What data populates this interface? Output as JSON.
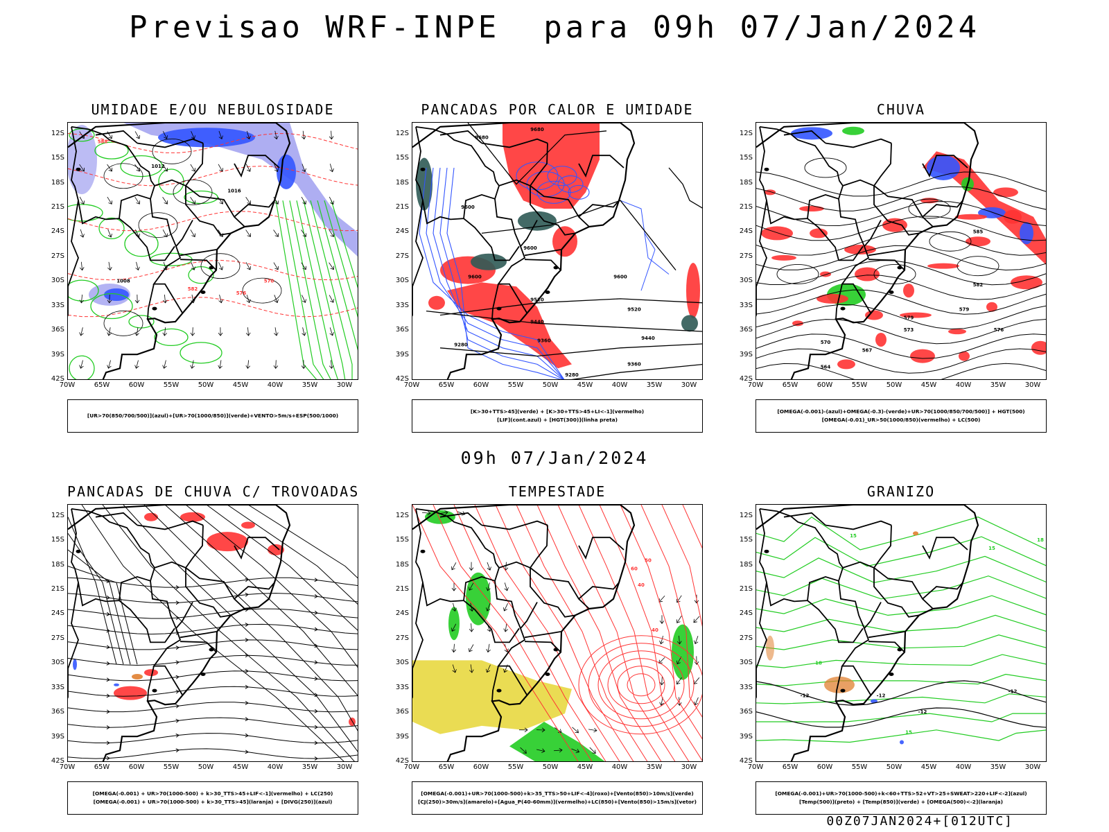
{
  "header": {
    "title": "Previsao WRF-INPE  para 09h 07/Jan/2024",
    "mid_date": "09h 07/Jan/2024",
    "footer": "00Z07JAN2024+[012UTC]"
  },
  "axes": {
    "lat_labels": [
      "12S",
      "15S",
      "18S",
      "21S",
      "24S",
      "27S",
      "30S",
      "33S",
      "36S",
      "39S",
      "42S"
    ],
    "lon_labels": [
      "70W",
      "65W",
      "60W",
      "55W",
      "50W",
      "45W",
      "40W",
      "35W",
      "30W"
    ]
  },
  "colors": {
    "green": "#22cc22",
    "red": "#ff3333",
    "blue": "#3355ff",
    "lightblue": "#a0a0f0",
    "darkgreen": "#2f5a55",
    "yellow": "#e8d840",
    "orange": "#e08030",
    "black": "#000000"
  },
  "panels": [
    {
      "title": "UMIDADE E/OU NEBULOSIDADE",
      "legend": [
        "[UR>70(850/700/500)](azul)+[UR>70(1000/850)](verde)+VENTO>5m/s+ESP(500/1000)"
      ],
      "contour_labels": [
        "1012",
        "1016",
        "1008",
        "576",
        "582",
        "588",
        "570"
      ]
    },
    {
      "title": "PANCADAS POR CALOR E UMIDADE",
      "legend": [
        "[K>30+TTS>45](verde)  +  [K>30+TTS>45+LI<-1](vermelho)",
        "[LIF](cont.azul)  +  [HGT(300)](linha preta)"
      ],
      "contour_labels": [
        "9680",
        "9600",
        "9520",
        "9440",
        "9360",
        "9280"
      ]
    },
    {
      "title": "CHUVA",
      "legend": [
        "[OMEGA(-0.001)-(azul)+OMEGA(-0.3)-(verde)+UR>70(1000/850/700/500)]  +  HGT(500)",
        "[OMEGA(-0.01)_UR>50(1000/850)(vermelho)  +  LC(500)"
      ],
      "contour_labels": [
        "585",
        "582",
        "579",
        "576",
        "573",
        "570",
        "567",
        "564"
      ]
    },
    {
      "title": "PANCADAS DE CHUVA C/ TROVOADAS",
      "legend": [
        "[OMEGA(-0.001)  +  UR>70(1000-500)  +  k>30_TTS>45+LIF<-1](vermelho)  +  LC(250)",
        "[OMEGA(-0.001)  +  UR>70(1000-500)  +  k>30_TTS>45](laranja)  +  [DIVG(250)](azul)"
      ],
      "contour_labels": []
    },
    {
      "title": "TEMPESTADE",
      "legend": [
        "[OMEGA(-0.001)+UR>70(1000-500)+k>35_TTS>50+LIF<-4](roxo)+[Vento(850)>10m/s](verde)",
        "[CJ(250)>30m/s](amarelo)+[Agua_P(40-60mm)](vermelho)+LC(850)+[Vento(850)>15m/s](vetor)"
      ],
      "contour_labels": [
        "40",
        "50",
        "60"
      ]
    },
    {
      "title": "GRANIZO",
      "legend": [
        "[OMEGA(-0.001)+UR>70(1000-500)+k<60+TTS>52+VT>25+SWEAT>220+LIF<-2](azul)",
        "[Temp(500)](preto)  +  [Temp(850)](verde)  +  [OMEGA(500)<-2](laranja)"
      ],
      "contour_labels": [
        "-12",
        "15",
        "18"
      ]
    }
  ]
}
